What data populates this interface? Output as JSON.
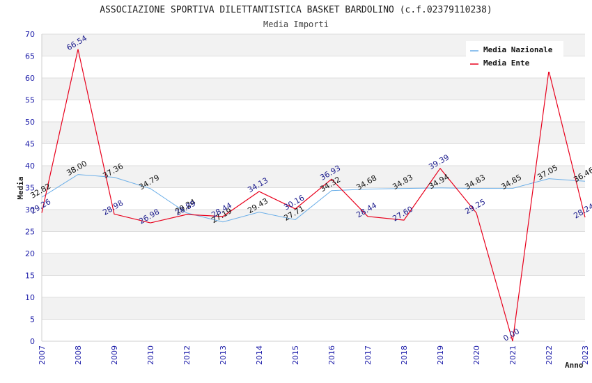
{
  "chart_data": {
    "type": "line",
    "title": "ASSOCIAZIONE SPORTIVA DILETTANTISTICA BASKET BARDOLINO (c.f.02379110238)",
    "subtitle": "Media Importi",
    "xlabel": "Anno",
    "ylabel": "Media",
    "ylim": [
      0,
      70
    ],
    "yticks": [
      0,
      5,
      10,
      15,
      20,
      25,
      30,
      35,
      40,
      45,
      50,
      55,
      60,
      65,
      70
    ],
    "grid": true,
    "legend_position": "top-right",
    "categories": [
      "2007",
      "2008",
      "2009",
      "2010",
      "2012",
      "2013",
      "2014",
      "2015",
      "2016",
      "2017",
      "2018",
      "2019",
      "2020",
      "2021",
      "2022",
      "2023"
    ],
    "series": [
      {
        "name": "Media Nazionale",
        "color": "#6aaee8",
        "values": [
          32.82,
          38.0,
          37.36,
          34.79,
          29.24,
          27.19,
          29.43,
          27.71,
          34.32,
          34.68,
          34.83,
          34.94,
          34.83,
          34.85,
          37.05,
          36.46
        ],
        "labels": [
          "32.82",
          "38.00",
          "37.36",
          "34.79",
          "29.24",
          "27.19",
          "29.43",
          "27.71",
          "34.32",
          "34.68",
          "34.83",
          "34.94",
          "34.83",
          "34.85",
          "37.05",
          "36.46"
        ]
      },
      {
        "name": "Media Ente",
        "color": "#e8001c",
        "values": [
          29.26,
          66.54,
          28.98,
          26.98,
          28.89,
          28.44,
          34.13,
          30.16,
          36.93,
          28.44,
          27.6,
          39.39,
          29.25,
          0.0,
          61.63,
          28.24
        ],
        "labels": [
          "29.26",
          "66.54",
          "28.98",
          "26.98",
          "28.89",
          "28.44",
          "34.13",
          "30.16",
          "36.93",
          "28.44",
          "27.60",
          "39.39",
          "29.25",
          "0.00",
          "",
          "28.24"
        ]
      }
    ]
  },
  "colors": {
    "band_light": "#f2f2f2",
    "grid_line": "#dddddd",
    "tick_text": "#1a1aa8"
  }
}
